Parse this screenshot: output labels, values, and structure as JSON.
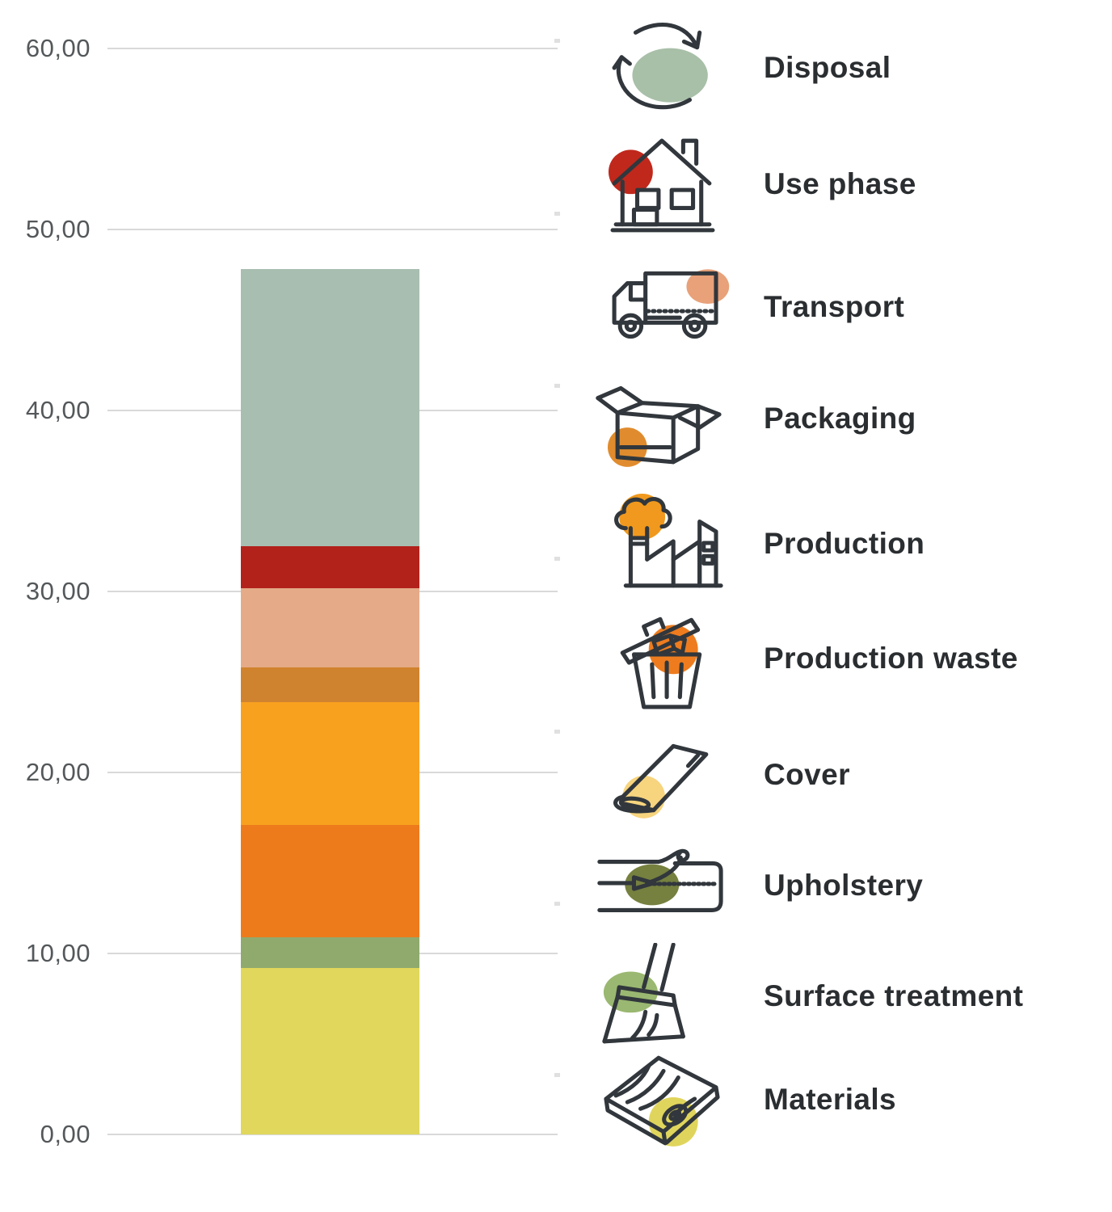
{
  "page": {
    "background": "#ffffff"
  },
  "chart_data": {
    "type": "bar",
    "subtype": "stacked-single-column",
    "orientation": "vertical",
    "title": "",
    "xlabel": "",
    "ylabel": "",
    "ylim": [
      0,
      60
    ],
    "ytick_step": 10,
    "ytick_labels": [
      "0,00",
      "10,00",
      "20,00",
      "30,00",
      "40,00",
      "50,00",
      "60,00"
    ],
    "decimal_style": "comma",
    "grid": true,
    "legend_position": "right",
    "categories": [
      ""
    ],
    "stack_order": "bottom-to-top",
    "series": [
      {
        "name": "Materials",
        "value": 9.2,
        "color": "#e0d75c"
      },
      {
        "name": "Surface treatment",
        "value": 1.7,
        "color": "#90aa6e"
      },
      {
        "name": "Upholstery",
        "value": 0.0,
        "color": "#76803f"
      },
      {
        "name": "Cover",
        "value": 0.0,
        "color": "#f7d47e"
      },
      {
        "name": "Production waste",
        "value": 6.2,
        "color": "#ed7b1c"
      },
      {
        "name": "Production",
        "value": 6.8,
        "color": "#f7a11f"
      },
      {
        "name": "Packaging",
        "value": 1.9,
        "color": "#d0832f"
      },
      {
        "name": "Transport",
        "value": 4.4,
        "color": "#e5ab88"
      },
      {
        "name": "Use phase",
        "value": 2.3,
        "color": "#b2221b"
      },
      {
        "name": "Disposal",
        "value": 15.3,
        "color": "#a8beb1"
      }
    ],
    "stack_total": 47.8
  },
  "legend": {
    "items": [
      {
        "label": "Disposal",
        "icon": "recycle-arrows-icon",
        "accent": "#a8bfa8"
      },
      {
        "label": "Use phase",
        "icon": "house-icon",
        "accent": "#c0281c"
      },
      {
        "label": "Transport",
        "icon": "truck-icon",
        "accent": "#e8a179"
      },
      {
        "label": "Packaging",
        "icon": "open-box-icon",
        "accent": "#e08c2e"
      },
      {
        "label": "Production",
        "icon": "factory-icon",
        "accent": "#f0991e"
      },
      {
        "label": "Production waste",
        "icon": "trash-can-icon",
        "accent": "#ee7c1e"
      },
      {
        "label": "Cover",
        "icon": "fabric-roll-icon",
        "accent": "#f7d47e"
      },
      {
        "label": "Upholstery",
        "icon": "mattress-stitch-icon",
        "accent": "#76803f"
      },
      {
        "label": "Surface treatment",
        "icon": "paint-brush-icon",
        "accent": "#9ab871"
      },
      {
        "label": "Materials",
        "icon": "wood-plank-icon",
        "accent": "#e0d55c"
      }
    ]
  },
  "colors": {
    "gridline": "#d9d9d9",
    "axis_text": "#54585a",
    "legend_text": "#2b2e31",
    "icon_stroke": "#31373c"
  }
}
